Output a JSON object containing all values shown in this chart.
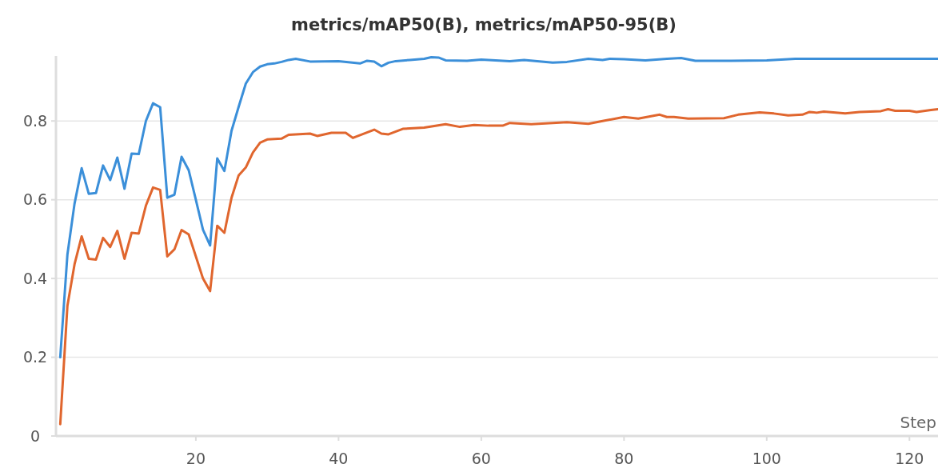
{
  "chart_data": {
    "type": "line",
    "title": "metrics/mAP50(B), metrics/mAP50-95(B)",
    "xlabel": "Step",
    "xlim": [
      0.4,
      124
    ],
    "ylim": [
      0,
      0.965
    ],
    "xticks": [
      20,
      40,
      60,
      80,
      100,
      120
    ],
    "yticks": [
      0,
      0.2,
      0.4,
      0.6,
      0.8
    ],
    "grid": "y",
    "marker": "none",
    "line_style": "solid",
    "series": [
      {
        "color": "#3b8fd9",
        "x": [
          1,
          2,
          3,
          4,
          5,
          6,
          7,
          8,
          9,
          10,
          11,
          12,
          13,
          14,
          15,
          16,
          17,
          18,
          19,
          20,
          21,
          22,
          23,
          24,
          25,
          26,
          27,
          28,
          29,
          30,
          31,
          32,
          33,
          34,
          36,
          40,
          43,
          44,
          45,
          46,
          47,
          48,
          50,
          52,
          53,
          54,
          55,
          58,
          60,
          64,
          66,
          70,
          72,
          75,
          77,
          78,
          80,
          83,
          86,
          88,
          90,
          95,
          100,
          104,
          110,
          124
        ],
        "values": [
          0.2,
          0.46,
          0.59,
          0.68,
          0.615,
          0.617,
          0.687,
          0.65,
          0.707,
          0.628,
          0.717,
          0.716,
          0.8,
          0.845,
          0.835,
          0.605,
          0.613,
          0.709,
          0.675,
          0.6,
          0.524,
          0.484,
          0.705,
          0.673,
          0.775,
          0.836,
          0.895,
          0.924,
          0.938,
          0.944,
          0.946,
          0.95,
          0.955,
          0.958,
          0.951,
          0.952,
          0.946,
          0.953,
          0.951,
          0.939,
          0.948,
          0.952,
          0.955,
          0.958,
          0.962,
          0.961,
          0.954,
          0.953,
          0.956,
          0.952,
          0.955,
          0.948,
          0.95,
          0.958,
          0.955,
          0.958,
          0.957,
          0.954,
          0.958,
          0.96,
          0.953,
          0.953,
          0.954,
          0.958,
          0.958,
          0.958
        ]
      },
      {
        "color": "#e0662e",
        "x": [
          1,
          2,
          3,
          4,
          5,
          6,
          7,
          8,
          9,
          10,
          11,
          12,
          13,
          14,
          15,
          16,
          17,
          18,
          19,
          20,
          21,
          22,
          23,
          24,
          25,
          26,
          27,
          28,
          29,
          30,
          32,
          33,
          36,
          37,
          39,
          41,
          42,
          45,
          46,
          47,
          49,
          52,
          55,
          57,
          59,
          61,
          63,
          64,
          67,
          69,
          72,
          75,
          77,
          80,
          82,
          85,
          86,
          87,
          89,
          94,
          96,
          99,
          101,
          103,
          105,
          106,
          107,
          108,
          111,
          113,
          116,
          117,
          118,
          120,
          121,
          123,
          124
        ],
        "values": [
          0.03,
          0.33,
          0.436,
          0.507,
          0.45,
          0.448,
          0.503,
          0.48,
          0.521,
          0.45,
          0.516,
          0.514,
          0.585,
          0.631,
          0.625,
          0.456,
          0.474,
          0.523,
          0.512,
          0.456,
          0.4,
          0.368,
          0.534,
          0.516,
          0.605,
          0.662,
          0.682,
          0.72,
          0.745,
          0.753,
          0.755,
          0.765,
          0.768,
          0.762,
          0.77,
          0.77,
          0.757,
          0.778,
          0.768,
          0.766,
          0.78,
          0.783,
          0.792,
          0.785,
          0.79,
          0.788,
          0.788,
          0.795,
          0.792,
          0.794,
          0.797,
          0.793,
          0.8,
          0.81,
          0.806,
          0.816,
          0.81,
          0.81,
          0.806,
          0.807,
          0.816,
          0.822,
          0.819,
          0.814,
          0.816,
          0.823,
          0.821,
          0.824,
          0.819,
          0.823,
          0.825,
          0.83,
          0.826,
          0.826,
          0.823,
          0.828,
          0.83
        ]
      }
    ]
  }
}
